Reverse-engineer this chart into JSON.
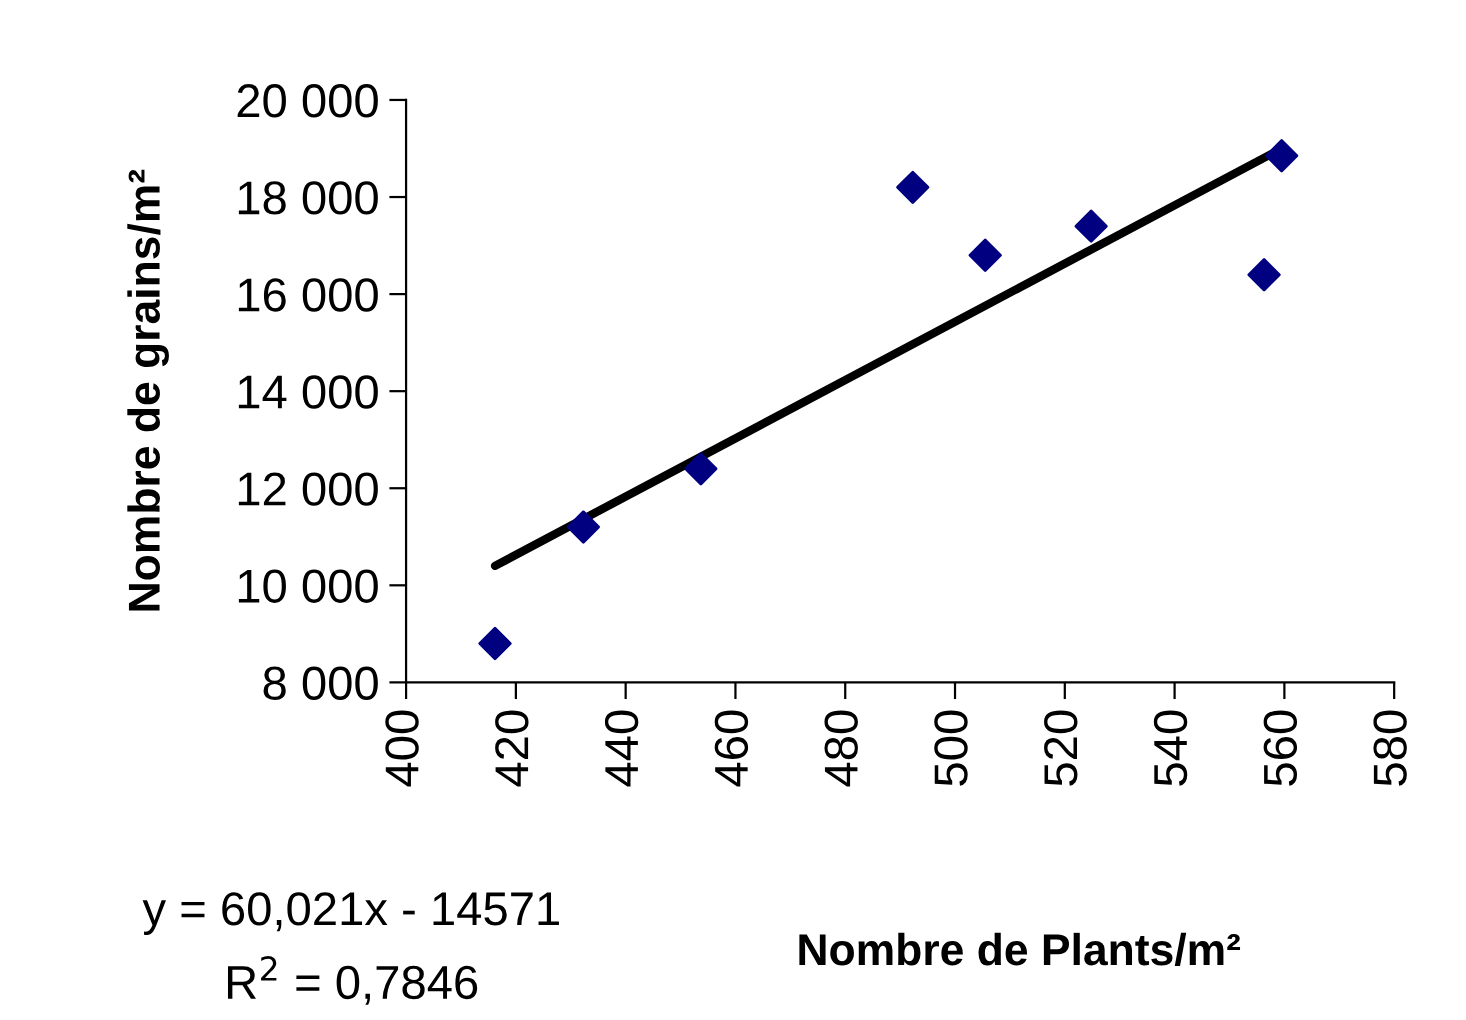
{
  "chart_data": {
    "type": "scatter",
    "xlabel": "Nombre de Plants/m²",
    "ylabel": "Nombre de grains/m²",
    "x": [
      416.2,
      432.3,
      453.7,
      492.3,
      505.5,
      524.8,
      556.3,
      559.5
    ],
    "series": [
      {
        "type": "scatter",
        "color": "#000080",
        "marker": "diamond",
        "values": [
          8800,
          11200,
          12400,
          18200,
          16800,
          17400,
          16400,
          18850
        ]
      },
      {
        "type": "line",
        "color": "#000000",
        "marker": "none",
        "line_style": "solid",
        "x": [
          416.2,
          559.5
        ],
        "values": [
          10400,
          19000
        ]
      }
    ],
    "xlim": [
      400,
      580
    ],
    "xticks": [
      400,
      420,
      440,
      460,
      480,
      500,
      520,
      540,
      560,
      580
    ],
    "ylim": [
      8000,
      20000
    ],
    "yticks": [
      {
        "value": 8000,
        "label": "8 000"
      },
      {
        "value": 10000,
        "label": "10 000"
      },
      {
        "value": 12000,
        "label": "12 000"
      },
      {
        "value": 14000,
        "label": "14 000"
      },
      {
        "value": 16000,
        "label": "16 000"
      },
      {
        "value": 18000,
        "label": "18 000"
      },
      {
        "value": 20000,
        "label": "20 000"
      }
    ],
    "grid": false,
    "legend": false,
    "annotations": [
      "y = 60,021x - 14571",
      "R$^{2}$ = 0,7846"
    ]
  }
}
